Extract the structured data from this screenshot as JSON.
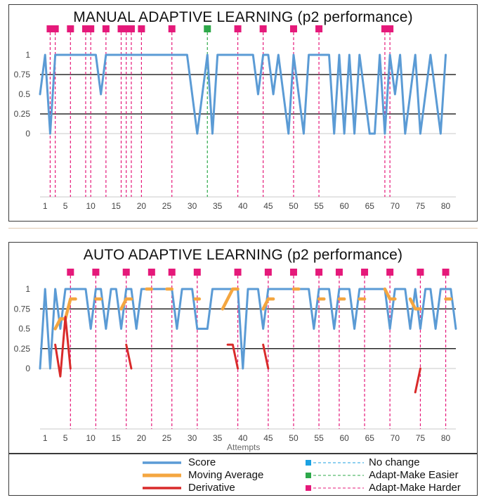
{
  "chart_data": [
    {
      "type": "line",
      "title": "MANUAL ADAPTIVE LEARNING (p2 performance)",
      "xlabel": "",
      "ylabel": "",
      "xlim": [
        0,
        82
      ],
      "ylim": [
        0,
        1
      ],
      "y_ticks": [
        "0",
        "0.25",
        "0.5",
        "0.75",
        "1"
      ],
      "x_ticks": [
        1,
        5,
        10,
        15,
        20,
        25,
        30,
        35,
        40,
        45,
        50,
        55,
        60,
        65,
        70,
        75,
        80
      ],
      "hlines": [
        0.75,
        0.25
      ],
      "series": [
        {
          "name": "Score",
          "color": "#5b9bd5",
          "points": [
            [
              0,
              0.5
            ],
            [
              1,
              1
            ],
            [
              2,
              0
            ],
            [
              3,
              1
            ],
            [
              4,
              1
            ],
            [
              11,
              1
            ],
            [
              12,
              0.5
            ],
            [
              13,
              1
            ],
            [
              29,
              1
            ],
            [
              31,
              0
            ],
            [
              33,
              1
            ],
            [
              34,
              0
            ],
            [
              35,
              1
            ],
            [
              42,
              1
            ],
            [
              43,
              0.5
            ],
            [
              44,
              1
            ],
            [
              45,
              1
            ],
            [
              46,
              0.5
            ],
            [
              47,
              1
            ],
            [
              49,
              0
            ],
            [
              50,
              1
            ],
            [
              51,
              0.5
            ],
            [
              52,
              0
            ],
            [
              53,
              1
            ],
            [
              57,
              1
            ],
            [
              58,
              0
            ],
            [
              59,
              1
            ],
            [
              60,
              0
            ],
            [
              61,
              1
            ],
            [
              62,
              0
            ],
            [
              63,
              1
            ],
            [
              65,
              0
            ],
            [
              66,
              0
            ],
            [
              67,
              1
            ],
            [
              68,
              0
            ],
            [
              69,
              1
            ],
            [
              70,
              0.5
            ],
            [
              71,
              1
            ],
            [
              72,
              0
            ],
            [
              74,
              1
            ],
            [
              75,
              0
            ],
            [
              77,
              1
            ],
            [
              78,
              0.5
            ],
            [
              79,
              0
            ],
            [
              80,
              1
            ]
          ]
        }
      ],
      "markers": [
        {
          "x": 2,
          "kind": "Adapt-Make Harder"
        },
        {
          "x": 3,
          "kind": "Adapt-Make Harder"
        },
        {
          "x": 6,
          "kind": "Adapt-Make Harder"
        },
        {
          "x": 9,
          "kind": "Adapt-Make Harder"
        },
        {
          "x": 10,
          "kind": "Adapt-Make Harder"
        },
        {
          "x": 13,
          "kind": "Adapt-Make Harder"
        },
        {
          "x": 16,
          "kind": "Adapt-Make Harder"
        },
        {
          "x": 17,
          "kind": "Adapt-Make Harder"
        },
        {
          "x": 18,
          "kind": "Adapt-Make Harder"
        },
        {
          "x": 20,
          "kind": "Adapt-Make Harder"
        },
        {
          "x": 26,
          "kind": "Adapt-Make Harder"
        },
        {
          "x": 33,
          "kind": "Adapt-Make Easier"
        },
        {
          "x": 39,
          "kind": "Adapt-Make Harder"
        },
        {
          "x": 44,
          "kind": "Adapt-Make Harder"
        },
        {
          "x": 50,
          "kind": "Adapt-Make Harder"
        },
        {
          "x": 55,
          "kind": "Adapt-Make Harder"
        },
        {
          "x": 68,
          "kind": "Adapt-Make Harder"
        },
        {
          "x": 69,
          "kind": "Adapt-Make Harder"
        }
      ]
    },
    {
      "type": "line",
      "title": "AUTO ADAPTIVE LEARNING (p2 performance)",
      "xlabel": "Attempts",
      "ylabel": "",
      "xlim": [
        0,
        82
      ],
      "ylim": [
        -0.3,
        1
      ],
      "y_ticks": [
        "0",
        "0.25",
        "0.5",
        "0.75",
        "1"
      ],
      "x_ticks": [
        1,
        5,
        10,
        15,
        20,
        25,
        30,
        35,
        40,
        45,
        50,
        55,
        60,
        65,
        70,
        75,
        80
      ],
      "hlines": [
        0.75,
        0.25
      ],
      "series": [
        {
          "name": "Score",
          "color": "#5b9bd5",
          "points": [
            [
              0,
              0
            ],
            [
              1,
              1
            ],
            [
              2,
              0
            ],
            [
              3,
              1
            ],
            [
              4,
              0.5
            ],
            [
              5,
              1
            ],
            [
              9,
              1
            ],
            [
              10,
              0.5
            ],
            [
              11,
              1
            ],
            [
              12,
              1
            ],
            [
              13,
              0.5
            ],
            [
              14,
              1
            ],
            [
              15,
              1
            ],
            [
              16,
              0.5
            ],
            [
              17,
              1
            ],
            [
              18,
              1
            ],
            [
              19,
              0.5
            ],
            [
              20,
              1
            ],
            [
              26,
              1
            ],
            [
              27,
              0.5
            ],
            [
              28,
              1
            ],
            [
              30,
              1
            ],
            [
              31,
              0.5
            ],
            [
              33,
              0.5
            ],
            [
              34,
              1
            ],
            [
              39,
              1
            ],
            [
              40,
              0
            ],
            [
              41,
              1
            ],
            [
              43,
              1
            ],
            [
              44,
              0.5
            ],
            [
              45,
              1
            ],
            [
              53,
              1
            ],
            [
              54,
              0.5
            ],
            [
              55,
              1
            ],
            [
              57,
              1
            ],
            [
              58,
              0.5
            ],
            [
              59,
              1
            ],
            [
              61,
              1
            ],
            [
              62,
              0.5
            ],
            [
              63,
              1
            ],
            [
              68,
              1
            ],
            [
              69,
              0.5
            ],
            [
              70,
              1
            ],
            [
              72,
              1
            ],
            [
              73,
              0.5
            ],
            [
              74,
              1
            ],
            [
              75,
              0.5
            ],
            [
              76,
              1
            ],
            [
              77,
              1
            ],
            [
              78,
              0.5
            ],
            [
              79,
              1
            ],
            [
              81,
              1
            ],
            [
              82,
              0.5
            ]
          ]
        },
        {
          "name": "Moving Average",
          "color": "#f4a640",
          "segments": [
            [
              [
                3,
                0.5
              ],
              [
                4,
                0.625
              ],
              [
                5,
                0.625
              ],
              [
                6,
                0.875
              ],
              [
                7,
                0.875
              ]
            ],
            [
              [
                11,
                0.875
              ],
              [
                12,
                0.875
              ]
            ],
            [
              [
                16,
                0.75
              ],
              [
                17,
                0.875
              ],
              [
                18,
                0.875
              ]
            ],
            [
              [
                21,
                1
              ],
              [
                22,
                1
              ]
            ],
            [
              [
                25,
                1
              ],
              [
                26,
                1
              ]
            ],
            [
              [
                31,
                0.875
              ]
            ],
            [
              [
                36,
                0.75
              ],
              [
                38,
                1
              ],
              [
                39,
                1
              ]
            ],
            [
              [
                44,
                0.75
              ],
              [
                45,
                0.875
              ],
              [
                46,
                0.875
              ]
            ],
            [
              [
                50,
                1
              ],
              [
                51,
                1
              ]
            ],
            [
              [
                55,
                0.875
              ],
              [
                56,
                0.875
              ]
            ],
            [
              [
                59,
                0.875
              ],
              [
                60,
                0.875
              ]
            ],
            [
              [
                63,
                0.875
              ],
              [
                64,
                0.875
              ]
            ],
            [
              [
                68,
                1
              ],
              [
                69,
                0.875
              ],
              [
                70,
                0.875
              ]
            ],
            [
              [
                73,
                0.875
              ],
              [
                74,
                0.75
              ],
              [
                75,
                0.75
              ]
            ],
            [
              [
                80,
                0.875
              ],
              [
                81,
                0.875
              ]
            ]
          ]
        },
        {
          "name": "Derivative",
          "color": "#d92a2a",
          "segments": [
            [
              [
                3,
                0.3
              ],
              [
                4,
                -0.1
              ],
              [
                5,
                0.65
              ],
              [
                6,
                0
              ]
            ],
            [
              [
                17,
                0.3
              ],
              [
                18,
                0
              ]
            ],
            [
              [
                37,
                0.3
              ],
              [
                38,
                0.3
              ],
              [
                38.5,
                0.15
              ],
              [
                39,
                0
              ]
            ],
            [
              [
                44,
                0.3
              ],
              [
                45,
                0
              ]
            ],
            [
              [
                74,
                -0.3
              ],
              [
                75,
                0
              ]
            ]
          ]
        }
      ],
      "markers": [
        {
          "x": 6,
          "kind": "Adapt-Make Harder"
        },
        {
          "x": 11,
          "kind": "Adapt-Make Harder"
        },
        {
          "x": 17,
          "kind": "Adapt-Make Harder"
        },
        {
          "x": 22,
          "kind": "Adapt-Make Harder"
        },
        {
          "x": 26,
          "kind": "Adapt-Make Harder"
        },
        {
          "x": 31,
          "kind": "Adapt-Make Harder"
        },
        {
          "x": 39,
          "kind": "Adapt-Make Harder"
        },
        {
          "x": 45,
          "kind": "Adapt-Make Harder"
        },
        {
          "x": 50,
          "kind": "Adapt-Make Harder"
        },
        {
          "x": 55,
          "kind": "Adapt-Make Harder"
        },
        {
          "x": 59,
          "kind": "Adapt-Make Harder"
        },
        {
          "x": 64,
          "kind": "Adapt-Make Harder"
        },
        {
          "x": 69,
          "kind": "Adapt-Make Harder"
        },
        {
          "x": 75,
          "kind": "Adapt-Make Harder"
        },
        {
          "x": 80,
          "kind": "Adapt-Make Harder"
        }
      ]
    }
  ],
  "legend": {
    "placement": "bottom",
    "items": [
      {
        "label": "Score",
        "style": "line",
        "color": "#5b9bd5"
      },
      {
        "label": "Moving Average",
        "style": "line",
        "color": "#f4a640"
      },
      {
        "label": "Derivative",
        "style": "line",
        "color": "#d92a2a"
      },
      {
        "label": "No change",
        "style": "marker",
        "color": "#1ba1e2"
      },
      {
        "label": "Adapt-Make Easier",
        "style": "marker",
        "color": "#2ea84a"
      },
      {
        "label": "Adapt-Make Harder",
        "style": "marker",
        "color": "#e5197a"
      }
    ]
  }
}
